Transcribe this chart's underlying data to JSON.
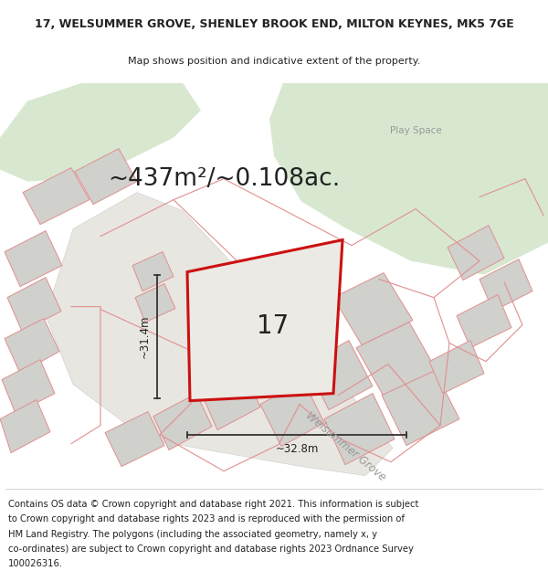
{
  "title": "17, WELSUMMER GROVE, SHENLEY BROOK END, MILTON KEYNES, MK5 7GE",
  "subtitle": "Map shows position and indicative extent of the property.",
  "area_text": "~437m²/~0.108ac.",
  "number_label": "17",
  "dim_vertical": "~31.4m",
  "dim_horizontal": "~32.8m",
  "road_label": "Welsummer Grove",
  "play_space_label": "Play Space",
  "footer_lines": [
    "Contains OS data © Crown copyright and database right 2021. This information is subject",
    "to Crown copyright and database rights 2023 and is reproduced with the permission of",
    "HM Land Registry. The polygons (including the associated geometry, namely x, y",
    "co-ordinates) are subject to Crown copyright and database rights 2023 Ordnance Survey",
    "100026316."
  ],
  "map_bg": "#f2f0ec",
  "green_color": "#d8e8d0",
  "building_fill": "#d0d0cc",
  "building_edge": "#e09090",
  "pink_line": "#e09090",
  "red_line": "#cc1111",
  "dim_line": "#333333",
  "text_dark": "#222222",
  "text_gray": "#999999",
  "white": "#ffffff",
  "title_fontsize": 9,
  "subtitle_fontsize": 8,
  "area_fontsize": 19,
  "num_fontsize": 20,
  "dim_fontsize": 8.5,
  "footer_fontsize": 7.2,
  "road_fontsize": 8.5,
  "playspace_fontsize": 7.5
}
